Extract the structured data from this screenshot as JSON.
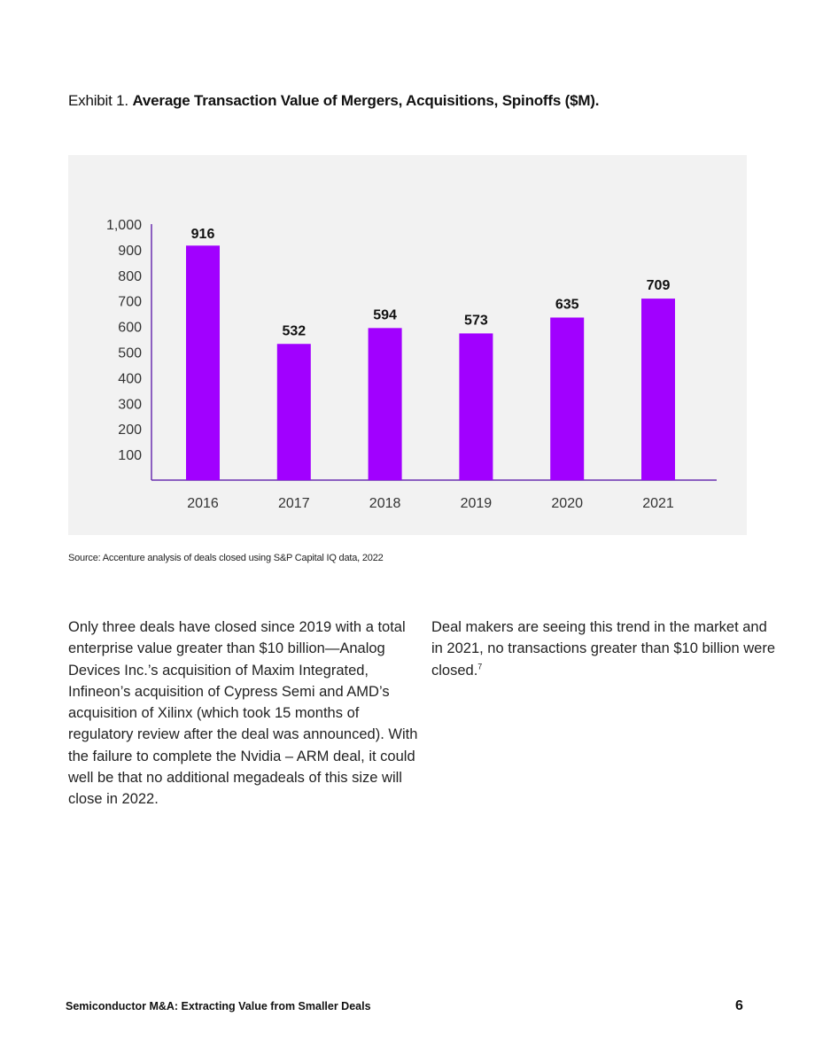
{
  "exhibit": {
    "label": "Exhibit 1.",
    "title": "Average Transaction Value of Mergers, Acquisitions, Spinoffs ($M)."
  },
  "chart_data": {
    "type": "bar",
    "title": "Average Transaction Value of Mergers, Acquisitions, Spinoffs ($M).",
    "categories": [
      "2016",
      "2017",
      "2018",
      "2019",
      "2020",
      "2021"
    ],
    "values": [
      916,
      532,
      594,
      573,
      635,
      709
    ],
    "data_labels": [
      "916",
      "532",
      "594",
      "573",
      "635",
      "709"
    ],
    "y_ticks": [
      100,
      200,
      300,
      400,
      500,
      600,
      700,
      800,
      900,
      1000
    ],
    "y_tick_labels": [
      "100",
      "200",
      "300",
      "400",
      "500",
      "600",
      "700",
      "800",
      "900",
      "1,000"
    ],
    "ylim": [
      0,
      1000
    ],
    "xlabel": "",
    "ylabel": "",
    "grid": false,
    "bar_color": "#a100ff",
    "background": "#f2f2f2"
  },
  "source": "Source: Accenture analysis of deals closed using S&P Capital IQ data, 2022",
  "body": {
    "left": "Only three deals have closed since 2019 with a total enterprise value greater than $10 billion—Analog Devices Inc.’s acquisition of Maxim Integrated, Infineon’s acquisition of Cypress Semi and AMD’s acquisition of Xilinx (which took 15 months of regulatory review after the deal was announced). With the failure to complete the Nvidia – ARM deal, it could well be that no additional megadeals of this size will close in 2022.",
    "right": "Deal makers are seeing this trend in the market and in 2021, no transactions greater than $10 billion were closed.",
    "right_footnote": "7"
  },
  "footer": {
    "title": "Semiconductor M&A: Extracting Value from Smaller Deals",
    "page_number": "6"
  }
}
